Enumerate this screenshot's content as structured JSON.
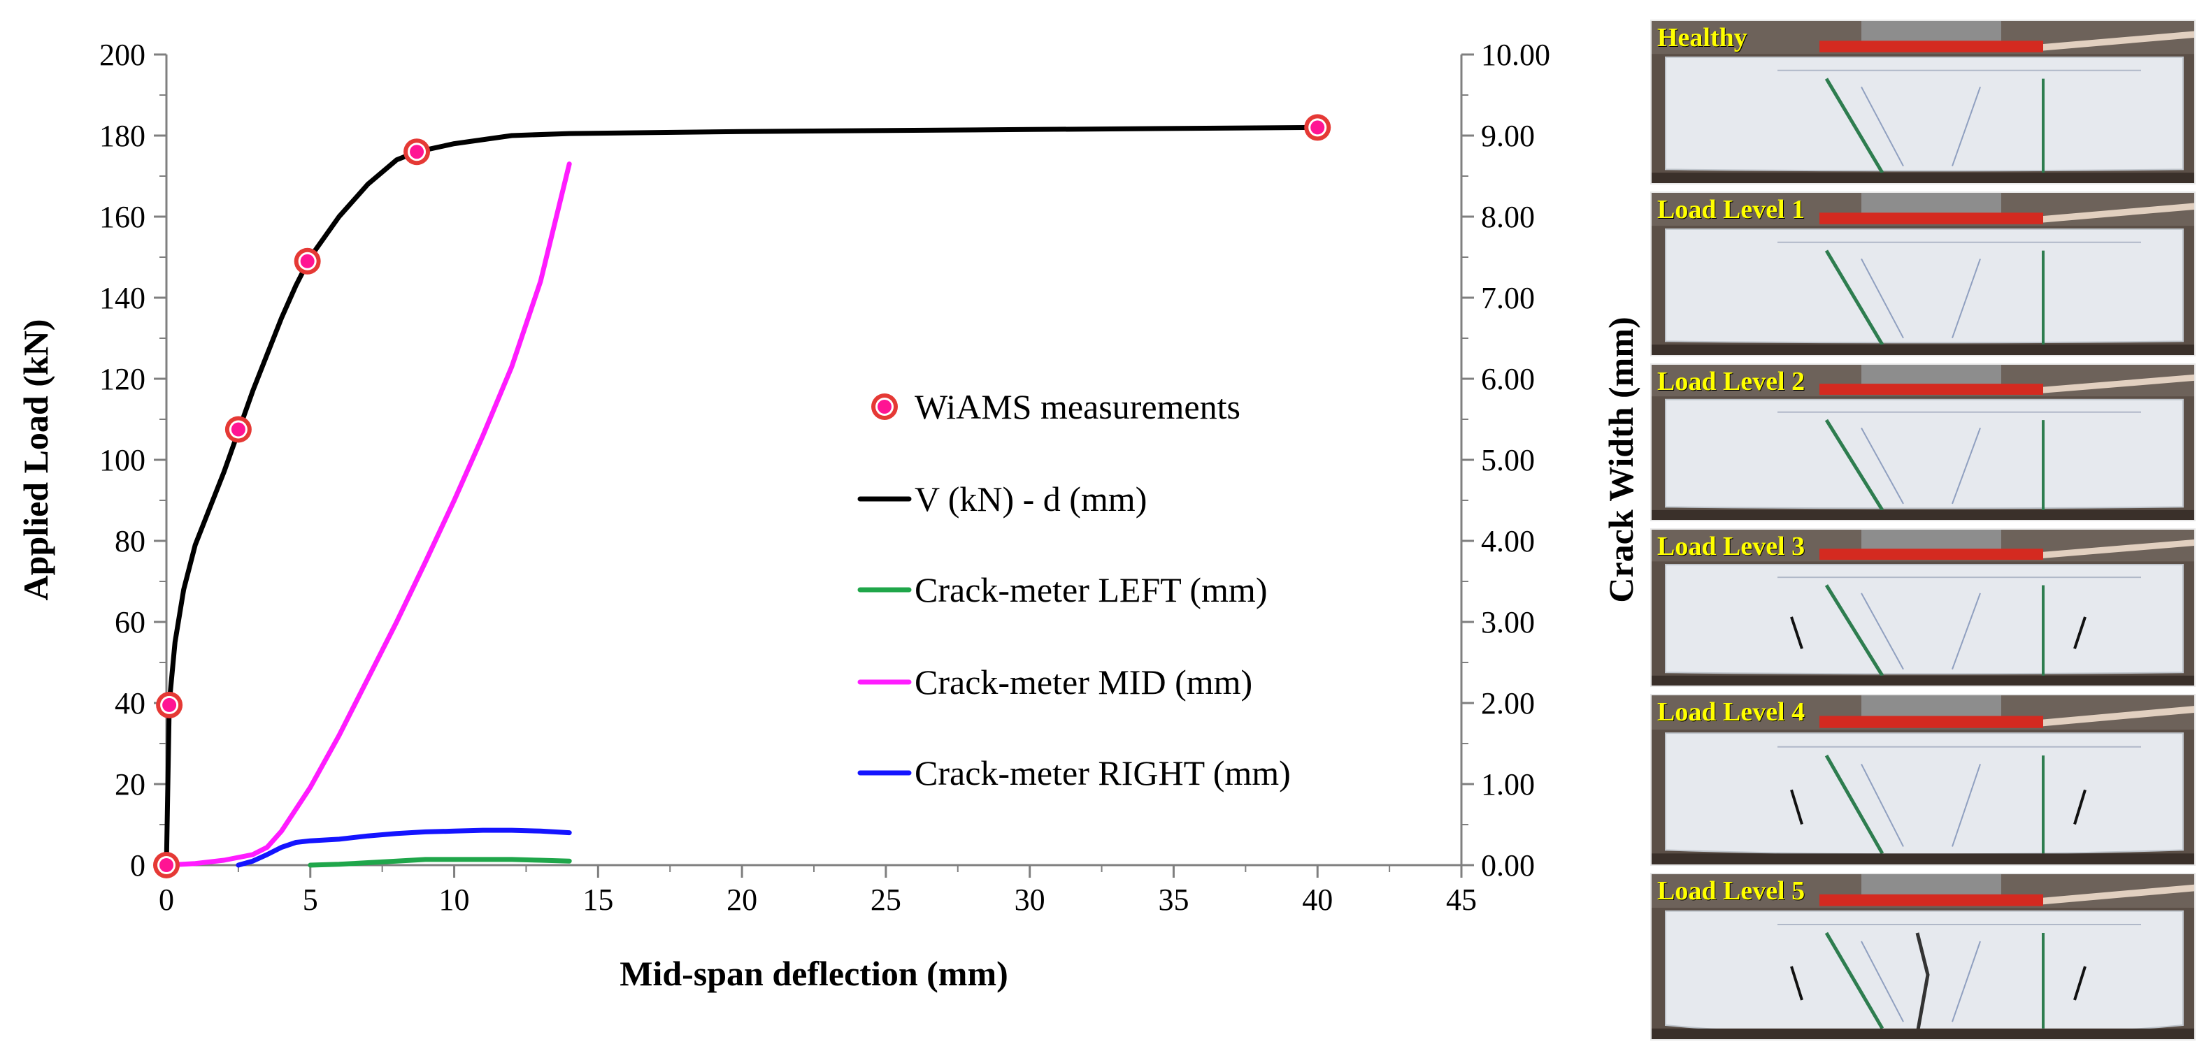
{
  "chart_data": {
    "type": "line",
    "title": "",
    "xlabel": "Mid-span deflection (mm)",
    "ylabel": "Applied Load (kN)",
    "y2label": "Crack Width (mm)",
    "xlim": [
      0,
      45
    ],
    "ylim": [
      0,
      200
    ],
    "y2lim": [
      0,
      10
    ],
    "x_ticks": [
      "0",
      "5",
      "10",
      "15",
      "20",
      "25",
      "30",
      "35",
      "40",
      "45"
    ],
    "y_ticks": [
      "0",
      "20",
      "40",
      "60",
      "80",
      "100",
      "120",
      "140",
      "160",
      "180",
      "200"
    ],
    "y2_ticks": [
      "0.00",
      "1.00",
      "2.00",
      "3.00",
      "4.00",
      "5.00",
      "6.00",
      "7.00",
      "8.00",
      "9.00",
      "10.00"
    ],
    "grid": false,
    "legend_position": "center",
    "series": [
      {
        "name": "WiAMS measurements",
        "kind": "scatter",
        "axis": "left",
        "color": "#ff1493",
        "edge_color": "#e53935",
        "x": [
          0,
          0.1,
          2.5,
          4.9,
          8.7,
          40
        ],
        "y": [
          0,
          39.5,
          107.5,
          149,
          176,
          182
        ]
      },
      {
        "name": "V (kN) - d (mm)",
        "kind": "line",
        "axis": "left",
        "color": "#000000",
        "x": [
          0,
          0.1,
          0.3,
          0.6,
          1.0,
          1.5,
          2.0,
          2.5,
          3.0,
          3.5,
          4.0,
          4.5,
          5.0,
          6.0,
          7.0,
          8.0,
          8.7,
          10,
          12,
          14,
          20,
          30,
          40
        ],
        "y": [
          0,
          40,
          55,
          68,
          79,
          88,
          97,
          107,
          117,
          126,
          135,
          143,
          150,
          160,
          168,
          174,
          176,
          178,
          180,
          180.5,
          181,
          181.5,
          182
        ]
      },
      {
        "name": "Crack-meter LEFT (mm)",
        "kind": "line",
        "axis": "right",
        "color": "#1fa64a",
        "x": [
          5,
          6,
          7,
          8,
          9,
          10,
          11,
          12,
          13,
          14
        ],
        "y": [
          0,
          0.01,
          0.03,
          0.05,
          0.07,
          0.07,
          0.07,
          0.07,
          0.06,
          0.05
        ]
      },
      {
        "name": "Crack-meter MID (mm)",
        "kind": "line",
        "axis": "right",
        "color": "#ff1cff",
        "x": [
          0,
          1,
          2,
          3,
          3.5,
          4,
          5,
          6,
          7,
          8,
          9,
          10,
          11,
          12,
          13,
          14
        ],
        "y": [
          0,
          0.02,
          0.06,
          0.13,
          0.22,
          0.42,
          0.96,
          1.6,
          2.3,
          3.0,
          3.74,
          4.5,
          5.3,
          6.15,
          7.2,
          8.65
        ]
      },
      {
        "name": "Crack-meter RIGHT (mm)",
        "kind": "line",
        "axis": "right",
        "color": "#1414ff",
        "x": [
          2.5,
          3,
          3.5,
          4,
          4.5,
          5,
          6,
          7,
          8,
          9,
          10,
          11,
          12,
          13,
          14
        ],
        "y": [
          0,
          0.05,
          0.13,
          0.22,
          0.28,
          0.3,
          0.32,
          0.36,
          0.39,
          0.41,
          0.42,
          0.43,
          0.43,
          0.42,
          0.4
        ]
      }
    ]
  },
  "photo_panels": [
    {
      "label": "Healthy"
    },
    {
      "label": "Load Level 1"
    },
    {
      "label": "Load Level 2"
    },
    {
      "label": "Load Level 3"
    },
    {
      "label": "Load Level 4"
    },
    {
      "label": "Load Level 5"
    }
  ]
}
